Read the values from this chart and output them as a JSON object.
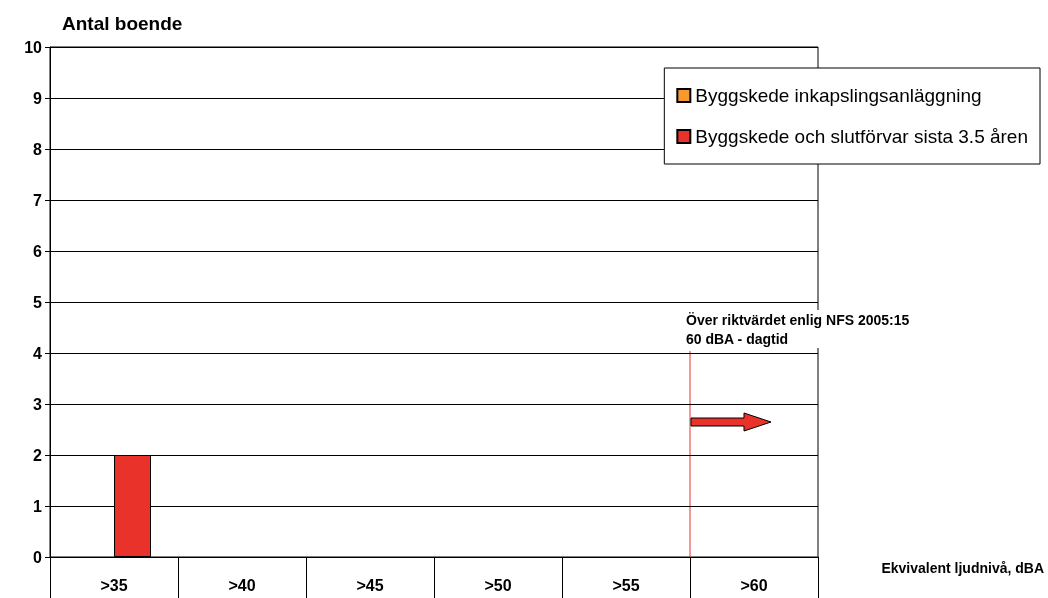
{
  "chart_data": {
    "type": "bar",
    "ylabel": "Antal boende",
    "xlabel": "Ekvivalent ljudnivå, dBA",
    "categories": [
      ">35",
      ">40",
      ">45",
      ">50",
      ">55",
      ">60"
    ],
    "series": [
      {
        "name": "Byggskede inkapslingsanläggning",
        "color": "#f59a2f",
        "values": [
          0,
          0,
          0,
          0,
          0,
          0
        ]
      },
      {
        "name": "Byggskede och slutförvar sista 3.5 åren",
        "color": "#e8322a",
        "values": [
          2,
          0,
          0,
          0,
          0,
          0
        ]
      }
    ],
    "ylim": [
      0,
      10
    ],
    "yticks": [
      0,
      1,
      2,
      3,
      4,
      5,
      6,
      7,
      8,
      9,
      10
    ],
    "grid": "y",
    "legend": "top right",
    "ref_lines": [
      {
        "axis": "x",
        "value": ">60",
        "label": "Över riktvärdet enlig NFS 2005:15\n60 dBA - dagtid",
        "color": "#e8322a"
      }
    ]
  }
}
